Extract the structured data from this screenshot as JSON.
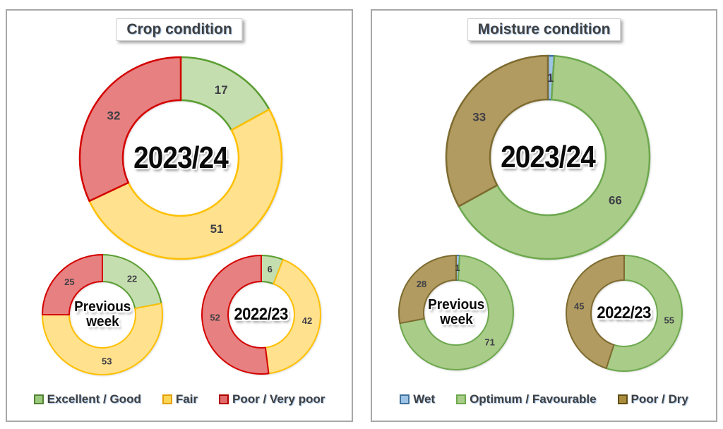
{
  "panels": [
    {
      "title": "Crop condition",
      "legend": [
        {
          "label": "Excellent / Good",
          "fill": "#9cca7c",
          "stroke": "#538135"
        },
        {
          "label": "Fair",
          "fill": "#ffd555",
          "stroke": "#e2a009"
        },
        {
          "label": "Poor / Very poor",
          "fill": "#e26b6b",
          "stroke": "#b00000"
        }
      ]
    },
    {
      "title": "Moisture condition",
      "legend": [
        {
          "label": "Wet",
          "fill": "#9dc3e6",
          "stroke": "#41719c"
        },
        {
          "label": "Optimum / Favourable",
          "fill": "#a9cd89",
          "stroke": "#6da84e"
        },
        {
          "label": "Poor / Dry",
          "fill": "#aa8c3e",
          "stroke": "#5f4d15"
        }
      ]
    }
  ],
  "chart_data": [
    {
      "type": "donut",
      "panel": "Crop condition",
      "center_label": "2023/24",
      "center_lines": [
        "2023/24"
      ],
      "labels": [
        "Excellent / Good",
        "Fair",
        "Poor / Very poor"
      ],
      "values": [
        17,
        51,
        32
      ],
      "fills": [
        "#c5deb0",
        "#ffe18e",
        "#e78080"
      ],
      "strokes": [
        "#5a9e31",
        "#ffc000",
        "#d40000"
      ]
    },
    {
      "type": "donut",
      "panel": "Crop condition",
      "center_label": "Previous week",
      "center_lines": [
        "Previous",
        "week"
      ],
      "labels": [
        "Excellent / Good",
        "Fair",
        "Poor / Very poor"
      ],
      "values": [
        22,
        53,
        25
      ],
      "fills": [
        "#c5deb0",
        "#ffe18e",
        "#e78080"
      ],
      "strokes": [
        "#5a9e31",
        "#ffc000",
        "#d40000"
      ]
    },
    {
      "type": "donut",
      "panel": "Crop condition",
      "center_label": "2022/23",
      "center_lines": [
        "2022/23"
      ],
      "labels": [
        "Excellent / Good",
        "Fair",
        "Poor / Very poor"
      ],
      "values": [
        6,
        42,
        52
      ],
      "fills": [
        "#c5deb0",
        "#ffe18e",
        "#e78080"
      ],
      "strokes": [
        "#5a9e31",
        "#ffc000",
        "#d40000"
      ]
    },
    {
      "type": "donut",
      "panel": "Moisture condition",
      "center_label": "2023/24",
      "center_lines": [
        "2023/24"
      ],
      "labels": [
        "Wet",
        "Optimum / Favourable",
        "Poor / Dry"
      ],
      "values": [
        1,
        66,
        33
      ],
      "fills": [
        "#9dc3e6",
        "#a9cc89",
        "#b29b61"
      ],
      "strokes": [
        "#41719c",
        "#6da84e",
        "#7d6b2f"
      ]
    },
    {
      "type": "donut",
      "panel": "Moisture condition",
      "center_label": "Previous week",
      "center_lines": [
        "Previous",
        "week"
      ],
      "labels": [
        "Wet",
        "Optimum / Favourable",
        "Poor / Dry"
      ],
      "values": [
        1,
        71,
        28
      ],
      "fills": [
        "#9dc3e6",
        "#a9cc89",
        "#b29b61"
      ],
      "strokes": [
        "#41719c",
        "#6da84e",
        "#7d6b2f"
      ]
    },
    {
      "type": "donut",
      "panel": "Moisture condition",
      "center_label": "2022/23",
      "center_lines": [
        "2022/23"
      ],
      "labels": [
        "Wet",
        "Optimum / Favourable",
        "Poor / Dry"
      ],
      "values": [
        0,
        55,
        45
      ],
      "fills": [
        "#9dc3e6",
        "#a9cc89",
        "#b29b61"
      ],
      "strokes": [
        "#41719c",
        "#6da84e",
        "#7d6b2f"
      ]
    }
  ]
}
